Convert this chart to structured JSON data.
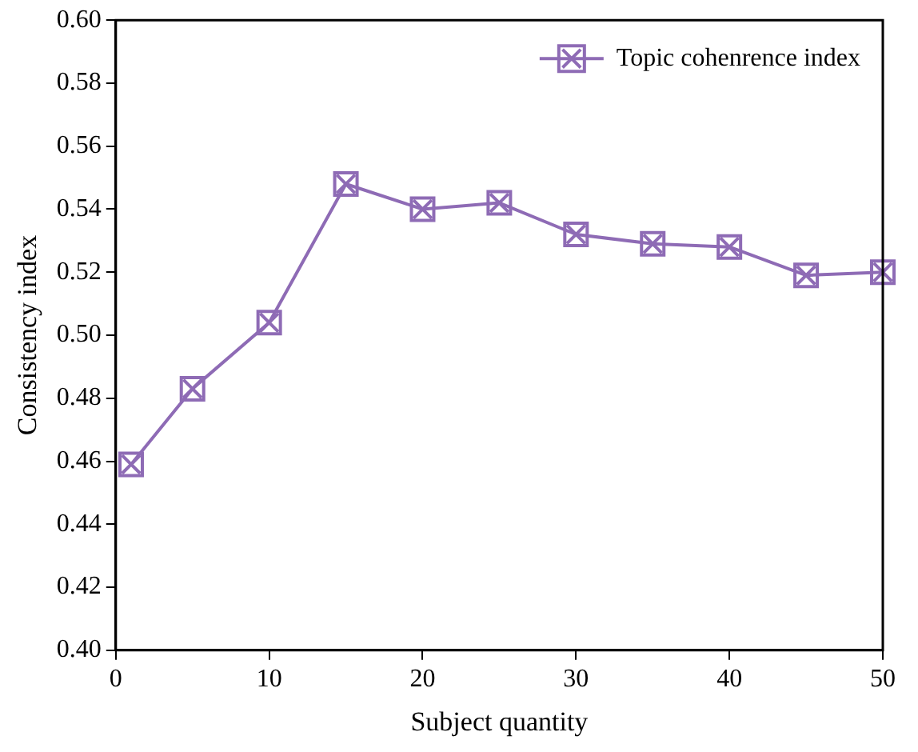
{
  "chart_data": {
    "type": "line",
    "xlabel": "Subject quantity",
    "ylabel": "Consistency index",
    "x": [
      1,
      5,
      10,
      15,
      20,
      25,
      30,
      35,
      40,
      45,
      50
    ],
    "series": [
      {
        "name": "Topic cohenrence index",
        "color": "#8e6bb5",
        "values": [
          0.459,
          0.483,
          0.504,
          0.548,
          0.54,
          0.542,
          0.532,
          0.529,
          0.528,
          0.519,
          0.52
        ]
      }
    ],
    "xlim": [
      0,
      50
    ],
    "xticks": [
      0,
      10,
      20,
      30,
      40,
      50
    ],
    "ylim": [
      0.4,
      0.6
    ],
    "yticks": [
      {
        "value": 0.4,
        "label": "0.40"
      },
      {
        "value": 0.42,
        "label": "0.42"
      },
      {
        "value": 0.44,
        "label": "0.44"
      },
      {
        "value": 0.46,
        "label": "0.46"
      },
      {
        "value": 0.48,
        "label": "0.48"
      },
      {
        "value": 0.5,
        "label": "0.50"
      },
      {
        "value": 0.52,
        "label": "0.52"
      },
      {
        "value": 0.54,
        "label": "0.54"
      },
      {
        "value": 0.56,
        "label": "0.56"
      },
      {
        "value": 0.58,
        "label": "0.58"
      },
      {
        "value": 0.6,
        "label": "0.60"
      }
    ],
    "grid": false,
    "legend": "top right",
    "marker": "cross",
    "line_style": "solid"
  }
}
